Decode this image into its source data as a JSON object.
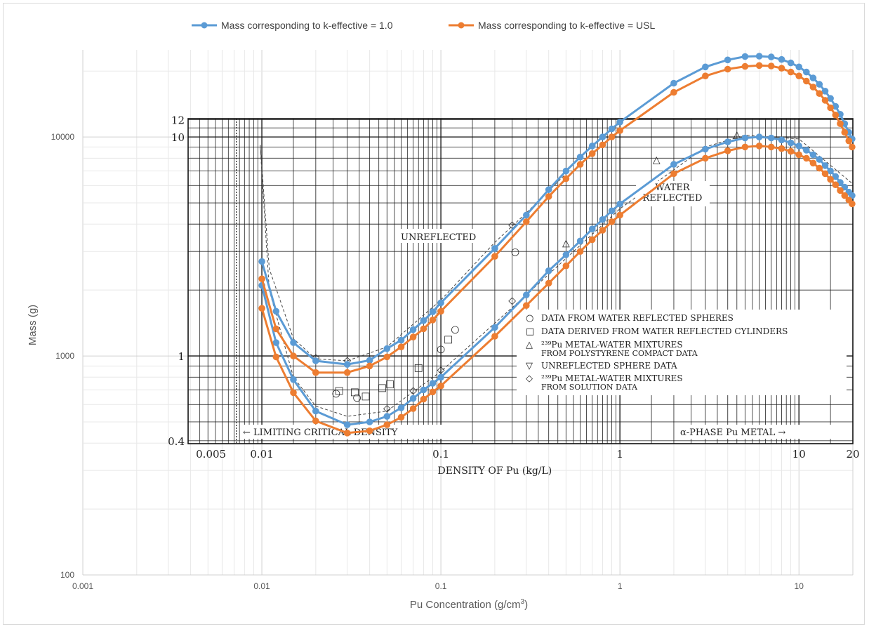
{
  "chart_data": {
    "type": "line",
    "title": "",
    "xlabel": "Pu Concentration (g/cm",
    "xlabel_sup": "3",
    "xlabel_close": ")",
    "ylabel": "Mass (g)",
    "x_scale": "log",
    "y_scale": "log",
    "xlim": [
      0.001,
      20
    ],
    "ylim": [
      100,
      25000
    ],
    "x_ticks": [
      "0.001",
      "0.01",
      "0.1",
      "1",
      "10"
    ],
    "y_ticks": [
      "100",
      "1000",
      "10000"
    ],
    "grid": true,
    "legend_position": "top",
    "series": [
      {
        "name": "Mass corresponding to k-effective = 1.0",
        "color": "#5b9bd5",
        "upper": {
          "x": [
            0.01,
            0.012,
            0.015,
            0.02,
            0.03,
            0.04,
            0.05,
            0.06,
            0.07,
            0.08,
            0.09,
            0.1,
            0.2,
            0.3,
            0.4,
            0.5,
            0.6,
            0.7,
            0.8,
            0.9,
            1,
            2,
            3,
            4,
            5,
            6,
            7,
            8,
            9,
            10,
            11,
            12,
            13,
            14,
            15,
            16,
            17,
            18,
            19,
            19.8
          ],
          "y": [
            2700,
            1600,
            1150,
            950,
            915,
            955,
            1080,
            1180,
            1320,
            1450,
            1590,
            1750,
            3100,
            4400,
            5750,
            7000,
            8100,
            9100,
            10000,
            10900,
            11700,
            17600,
            20900,
            22500,
            23300,
            23400,
            23200,
            22600,
            21800,
            20900,
            19800,
            18600,
            17400,
            16200,
            15000,
            13800,
            12700,
            11500,
            10500,
            9800
          ]
        },
        "lower": {
          "x": [
            0.01,
            0.012,
            0.015,
            0.02,
            0.03,
            0.04,
            0.05,
            0.06,
            0.07,
            0.08,
            0.09,
            0.1,
            0.2,
            0.3,
            0.4,
            0.5,
            0.6,
            0.7,
            0.8,
            0.9,
            1,
            2,
            3,
            4,
            5,
            6,
            7,
            8,
            9,
            10,
            11,
            12,
            13,
            14,
            15,
            16,
            17,
            18,
            19,
            19.8
          ],
          "y": [
            2100,
            1150,
            780,
            560,
            485,
            500,
            530,
            580,
            640,
            700,
            750,
            800,
            1350,
            1900,
            2450,
            2900,
            3350,
            3800,
            4200,
            4600,
            4950,
            7500,
            8800,
            9500,
            9900,
            10000,
            9900,
            9700,
            9400,
            9100,
            8700,
            8300,
            7900,
            7400,
            7000,
            6600,
            6200,
            5900,
            5600,
            5400
          ]
        }
      },
      {
        "name": "Mass corresponding to k-effective = USL",
        "color": "#ed7d31",
        "upper": {
          "x": [
            0.01,
            0.012,
            0.015,
            0.02,
            0.03,
            0.04,
            0.05,
            0.06,
            0.07,
            0.08,
            0.09,
            0.1,
            0.2,
            0.3,
            0.4,
            0.5,
            0.6,
            0.7,
            0.8,
            0.9,
            1,
            2,
            3,
            4,
            5,
            6,
            7,
            8,
            9,
            10,
            11,
            12,
            13,
            14,
            15,
            16,
            17,
            18,
            19,
            19.8
          ],
          "y": [
            2250,
            1330,
            1000,
            840,
            840,
            900,
            990,
            1100,
            1220,
            1330,
            1460,
            1600,
            2850,
            4100,
            5350,
            6450,
            7500,
            8400,
            9200,
            10000,
            10700,
            16000,
            19000,
            20400,
            21000,
            21200,
            21100,
            20600,
            19800,
            19000,
            18000,
            16900,
            15800,
            14700,
            13600,
            12600,
            11500,
            10500,
            9600,
            9000
          ]
        },
        "lower": {
          "x": [
            0.01,
            0.012,
            0.015,
            0.02,
            0.03,
            0.04,
            0.05,
            0.06,
            0.07,
            0.08,
            0.09,
            0.1,
            0.2,
            0.3,
            0.4,
            0.5,
            0.6,
            0.7,
            0.8,
            0.9,
            1,
            2,
            3,
            4,
            5,
            6,
            7,
            8,
            9,
            10,
            11,
            12,
            13,
            14,
            15,
            16,
            17,
            18,
            19,
            19.8
          ],
          "y": [
            1650,
            990,
            680,
            505,
            445,
            455,
            485,
            525,
            575,
            635,
            685,
            730,
            1230,
            1700,
            2150,
            2580,
            3000,
            3400,
            3750,
            4100,
            4400,
            6800,
            8000,
            8650,
            9000,
            9100,
            9000,
            8850,
            8600,
            8300,
            8000,
            7600,
            7200,
            6800,
            6400,
            6050,
            5700,
            5400,
            5150,
            4950
          ]
        }
      }
    ],
    "background_figure": {
      "y_ticks": [
        "12",
        "10",
        "1",
        "0.4"
      ],
      "x_ticks": [
        "0.005",
        "0.01",
        "0.1",
        "1",
        "10",
        "20"
      ],
      "xlabel": "DENSITY OF Pu (kg/L)",
      "labels": {
        "unreflected": "UNREFLECTED",
        "water_reflected_1": "WATER",
        "water_reflected_2": "REFLECTED",
        "limiting": "LIMITING CRITICAL DENSITY",
        "alpha": "α-PHASE Pu  METAL"
      },
      "legend": [
        "DATA  FROM  WATER REFLECTED  SPHERES",
        "DATA  DERIVED  FROM  WATER REFLECTED  CYLINDERS",
        "²³⁹Pu METAL-WATER MIXTURES",
        "FROM POLYSTYRENE COMPACT DATA",
        "UNREFLECTED SPHERE DATA",
        "²³⁹Pu METAL-WATER MIXTURES",
        "FROM SOLUTION DATA"
      ]
    }
  }
}
